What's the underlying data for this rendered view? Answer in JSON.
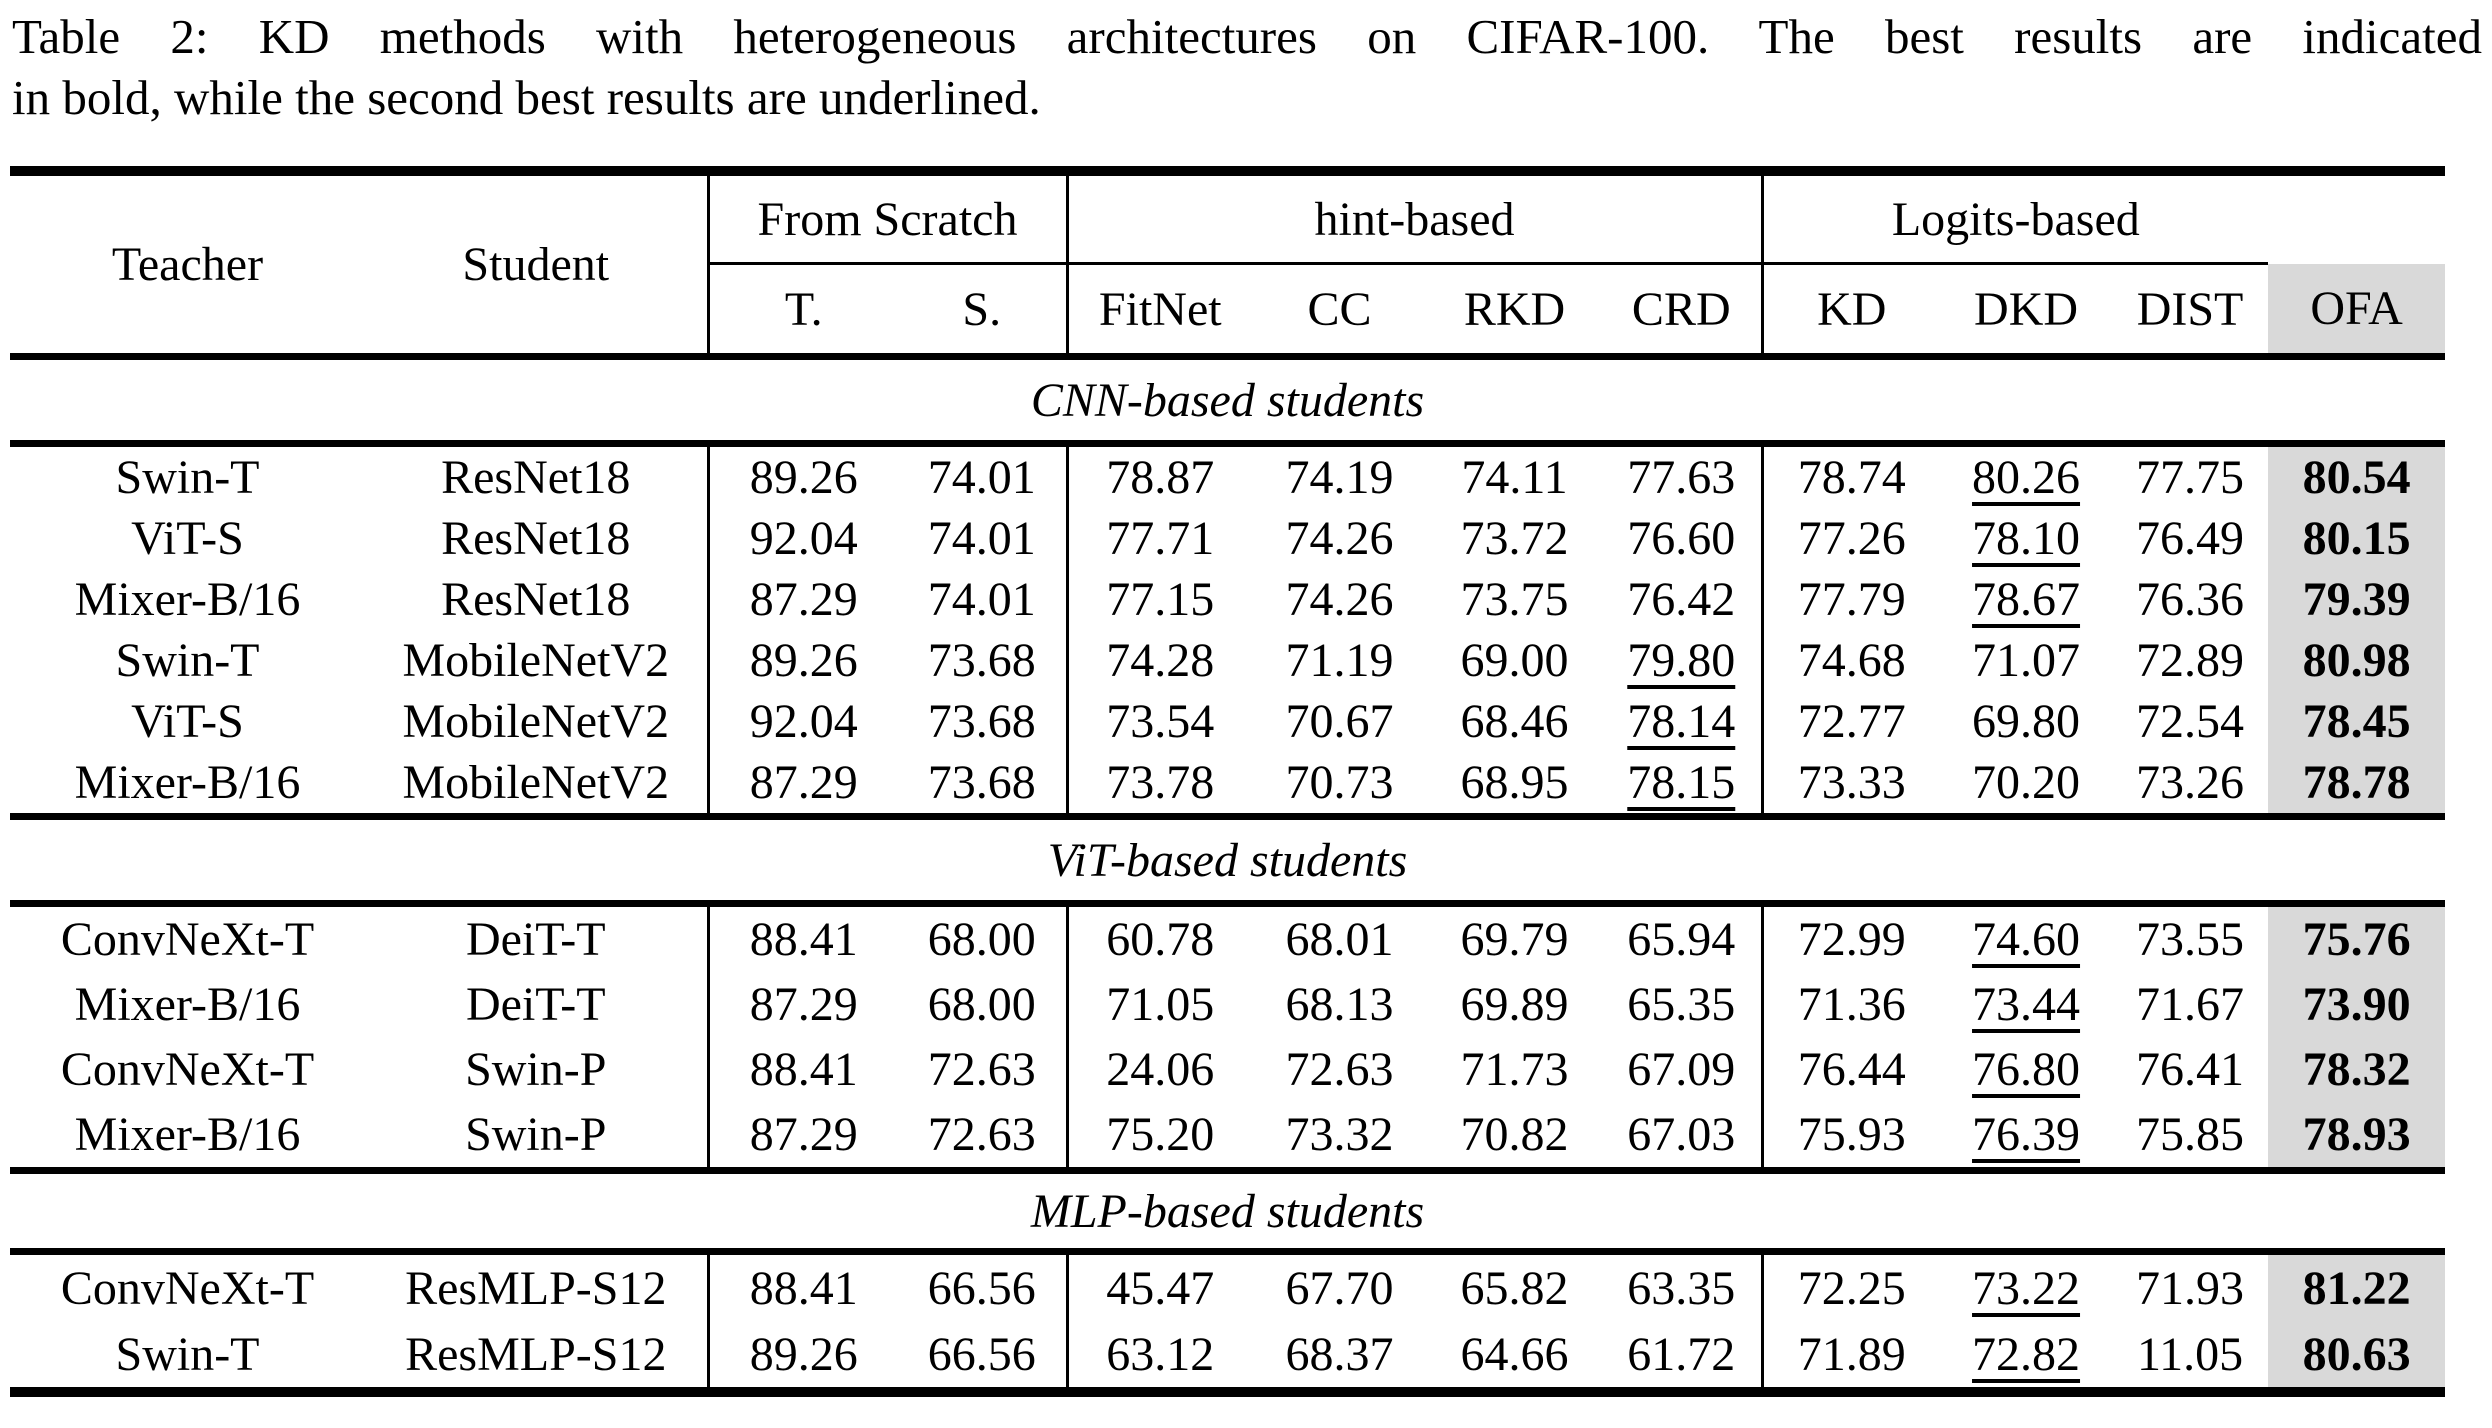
{
  "caption": {
    "line1": "Table 2: KD methods with heterogeneous architectures on CIFAR-100. The best results are indicated",
    "line2": "in bold, while the second best results are underlined."
  },
  "header": {
    "teacher": "Teacher",
    "student": "Student",
    "groups": [
      {
        "label": "From Scratch",
        "cols": [
          "T.",
          "S."
        ]
      },
      {
        "label": "hint-based",
        "cols": [
          "FitNet",
          "CC",
          "RKD",
          "CRD"
        ]
      },
      {
        "label": "Logits-based",
        "cols": [
          "KD",
          "DKD",
          "DIST"
        ]
      }
    ],
    "ofa": "OFA"
  },
  "ofa_highlight_color": "#d9d9d9",
  "sections": [
    {
      "title": "CNN-based students",
      "rows": [
        {
          "teacher": "Swin-T",
          "student": "ResNet18",
          "values": [
            "89.26",
            "74.01",
            "78.87",
            "74.19",
            "74.11",
            "77.63",
            "78.74",
            "80.26",
            "77.75",
            "80.54"
          ],
          "underline_idx": 7,
          "bold_idx": 9
        },
        {
          "teacher": "ViT-S",
          "student": "ResNet18",
          "values": [
            "92.04",
            "74.01",
            "77.71",
            "74.26",
            "73.72",
            "76.60",
            "77.26",
            "78.10",
            "76.49",
            "80.15"
          ],
          "underline_idx": 7,
          "bold_idx": 9
        },
        {
          "teacher": "Mixer-B/16",
          "student": "ResNet18",
          "values": [
            "87.29",
            "74.01",
            "77.15",
            "74.26",
            "73.75",
            "76.42",
            "77.79",
            "78.67",
            "76.36",
            "79.39"
          ],
          "underline_idx": 7,
          "bold_idx": 9
        },
        {
          "teacher": "Swin-T",
          "student": "MobileNetV2",
          "values": [
            "89.26",
            "73.68",
            "74.28",
            "71.19",
            "69.00",
            "79.80",
            "74.68",
            "71.07",
            "72.89",
            "80.98"
          ],
          "underline_idx": 5,
          "bold_idx": 9
        },
        {
          "teacher": "ViT-S",
          "student": "MobileNetV2",
          "values": [
            "92.04",
            "73.68",
            "73.54",
            "70.67",
            "68.46",
            "78.14",
            "72.77",
            "69.80",
            "72.54",
            "78.45"
          ],
          "underline_idx": 5,
          "bold_idx": 9
        },
        {
          "teacher": "Mixer-B/16",
          "student": "MobileNetV2",
          "values": [
            "87.29",
            "73.68",
            "73.78",
            "70.73",
            "68.95",
            "78.15",
            "73.33",
            "70.20",
            "73.26",
            "78.78"
          ],
          "underline_idx": 5,
          "bold_idx": 9
        }
      ]
    },
    {
      "title": "ViT-based students",
      "rows": [
        {
          "teacher": "ConvNeXt-T",
          "student": "DeiT-T",
          "values": [
            "88.41",
            "68.00",
            "60.78",
            "68.01",
            "69.79",
            "65.94",
            "72.99",
            "74.60",
            "73.55",
            "75.76"
          ],
          "underline_idx": 7,
          "bold_idx": 9
        },
        {
          "teacher": "Mixer-B/16",
          "student": "DeiT-T",
          "values": [
            "87.29",
            "68.00",
            "71.05",
            "68.13",
            "69.89",
            "65.35",
            "71.36",
            "73.44",
            "71.67",
            "73.90"
          ],
          "underline_idx": 7,
          "bold_idx": 9
        },
        {
          "teacher": "ConvNeXt-T",
          "student": "Swin-P",
          "values": [
            "88.41",
            "72.63",
            "24.06",
            "72.63",
            "71.73",
            "67.09",
            "76.44",
            "76.80",
            "76.41",
            "78.32"
          ],
          "underline_idx": 7,
          "bold_idx": 9
        },
        {
          "teacher": "Mixer-B/16",
          "student": "Swin-P",
          "values": [
            "87.29",
            "72.63",
            "75.20",
            "73.32",
            "70.82",
            "67.03",
            "75.93",
            "76.39",
            "75.85",
            "78.93"
          ],
          "underline_idx": 7,
          "bold_idx": 9
        }
      ]
    },
    {
      "title": "MLP-based students",
      "rows": [
        {
          "teacher": "ConvNeXt-T",
          "student": "ResMLP-S12",
          "values": [
            "88.41",
            "66.56",
            "45.47",
            "67.70",
            "65.82",
            "63.35",
            "72.25",
            "73.22",
            "71.93",
            "81.22"
          ],
          "underline_idx": 7,
          "bold_idx": 9
        },
        {
          "teacher": "Swin-T",
          "student": "ResMLP-S12",
          "values": [
            "89.26",
            "66.56",
            "63.12",
            "68.37",
            "64.66",
            "61.72",
            "71.89",
            "72.82",
            "11.05",
            "80.63"
          ],
          "underline_idx": 7,
          "bold_idx": 9
        }
      ]
    }
  ]
}
